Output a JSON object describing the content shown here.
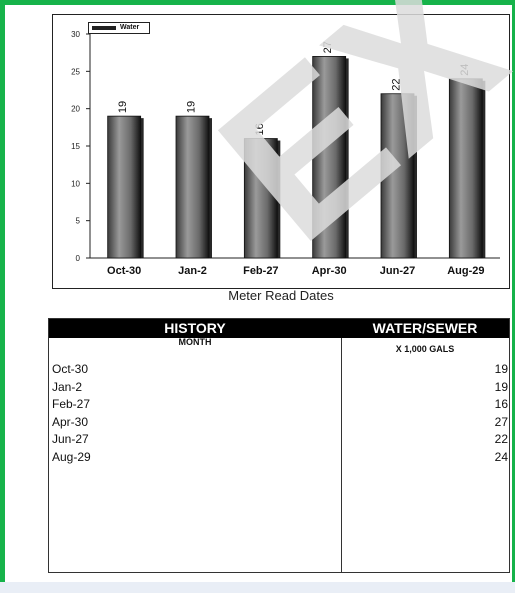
{
  "chart_data": {
    "type": "bar",
    "categories": [
      "Oct-30",
      "Jan-2",
      "Feb-27",
      "Apr-30",
      "Jun-27",
      "Aug-29"
    ],
    "series": [
      {
        "name": "Water",
        "values": [
          19,
          19,
          16,
          27,
          22,
          24
        ]
      }
    ],
    "xlabel": "Meter Read Dates",
    "ylabel": "",
    "ylim": [
      0,
      30
    ],
    "yticks": [
      0,
      5,
      10,
      15,
      20,
      25,
      30
    ],
    "data_labels": true,
    "legend_position": "top-left",
    "bar_color": "#7a7a7a"
  },
  "table": {
    "header_left": "HISTORY",
    "header_right": "WATER/SEWER",
    "sub_left": "MONTH",
    "sub_right": "X 1,000 GALS",
    "rows": [
      {
        "month": "Oct-30",
        "value": "19"
      },
      {
        "month": "Jan-2",
        "value": "19"
      },
      {
        "month": "Feb-27",
        "value": "16"
      },
      {
        "month": "Apr-30",
        "value": "27"
      },
      {
        "month": "Jun-27",
        "value": "22"
      },
      {
        "month": "Aug-29",
        "value": "24"
      }
    ]
  },
  "watermark": {
    "text": "EX",
    "color": "#dcdcdc"
  },
  "frame_color": "#16b34a"
}
